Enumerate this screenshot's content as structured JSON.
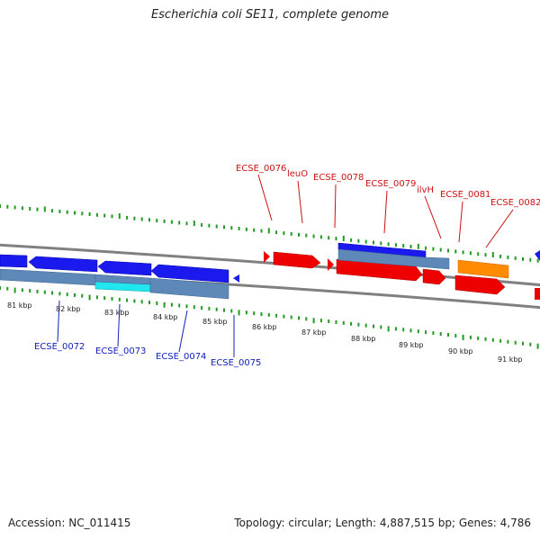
{
  "title": "Escherichia coli SE11, complete genome",
  "footer": {
    "accession": "Accession: NC_011415",
    "summary": "Topology: circular; Length: 4,887,515 bp; Genes: 4,786"
  },
  "colors": {
    "forward_gene": "#ee0000",
    "reverse_gene": "#1a1aee",
    "cds_bar": "#5e88b8",
    "highlight": "#22e6ee",
    "rna_gene": "#ff8c00",
    "tick": "#229922",
    "backbone": "#808080",
    "label_top": "#cc1111",
    "label_bottom": "#1122bb"
  },
  "scale": {
    "unit": "kbp",
    "labels": [
      "81 kbp",
      "82 kbp",
      "83 kbp",
      "84 kbp",
      "85 kbp",
      "86 kbp",
      "87 kbp",
      "88 kbp",
      "89 kbp",
      "90 kbp",
      "91 kbp"
    ]
  },
  "genes_top": [
    {
      "name": "ECSE_0076"
    },
    {
      "name": "leuO"
    },
    {
      "name": "ECSE_0078"
    },
    {
      "name": "ECSE_0079"
    },
    {
      "name": "ilvH"
    },
    {
      "name": "ECSE_0081"
    },
    {
      "name": "ECSE_0082"
    }
  ],
  "genes_bottom": [
    {
      "name": "ECSE_0072"
    },
    {
      "name": "ECSE_0073"
    },
    {
      "name": "ECSE_0074"
    },
    {
      "name": "ECSE_0075"
    }
  ]
}
